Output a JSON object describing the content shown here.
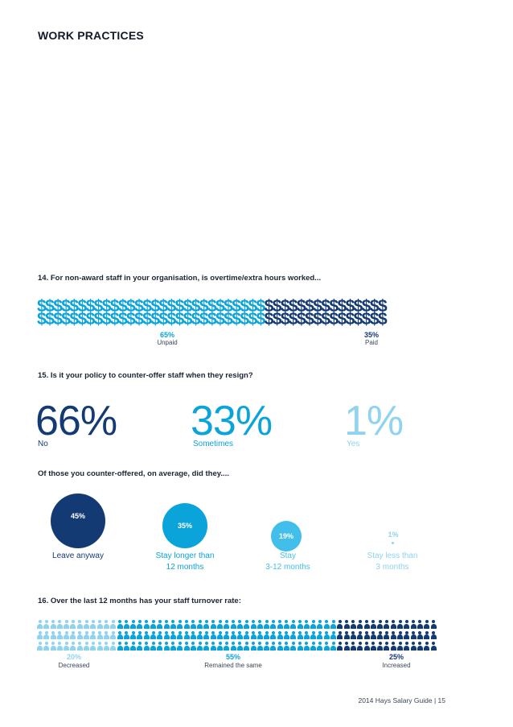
{
  "section_title": "WORK PRACTICES",
  "q14": {
    "question": "14.  For non-award staff in your organisation, is overtime/extra hours worked...",
    "dollar_symbol": "$",
    "unpaid": {
      "pct": "65%",
      "label": "Unpaid",
      "fraction": 0.65
    },
    "paid": {
      "pct": "35%",
      "label": "Paid",
      "fraction": 0.35
    },
    "colors": {
      "unpaid": "#0aa3da",
      "paid": "#143a73"
    }
  },
  "q15": {
    "question": "15.  Is it your policy to counter-offer staff when they resign?",
    "answers": [
      {
        "pct": "66%",
        "label": "No",
        "color": "#143a73"
      },
      {
        "pct": "33%",
        "label": "Sometimes",
        "color": "#0aa3da"
      },
      {
        "pct": "1%",
        "label": "Yes",
        "color": "#8fd3ef"
      }
    ],
    "followup": "Of those you counter-offered, on average, did they....",
    "outcomes": [
      {
        "pct": "45%",
        "line1": "Leave anyway",
        "line2": "",
        "color": "#143a73",
        "caption_color": "#143a73"
      },
      {
        "pct": "35%",
        "line1": "Stay longer than",
        "line2": "12 months",
        "color": "#0aa3da",
        "caption_color": "#0aa3da"
      },
      {
        "pct": "19%",
        "line1": "Stay",
        "line2": "3-12 months",
        "color": "#41bfea",
        "caption_color": "#41bfea"
      },
      {
        "pct": "1%",
        "line1": "Stay less than",
        "line2": "3 months",
        "color": "#8fd3ef",
        "caption_color": "#8fd3ef"
      }
    ]
  },
  "q16": {
    "question": "16.  Over the last 12 months has your staff turnover rate:",
    "segments": [
      {
        "pct": "20%",
        "label": "Decreased",
        "fraction": 0.2,
        "color": "#8fd3ef"
      },
      {
        "pct": "55%",
        "label": "Remained the same",
        "fraction": 0.55,
        "color": "#0aa3da"
      },
      {
        "pct": "25%",
        "label": "Increased",
        "fraction": 0.25,
        "color": "#143a73"
      }
    ]
  },
  "footer": "2014 Hays Salary Guide  |  15"
}
